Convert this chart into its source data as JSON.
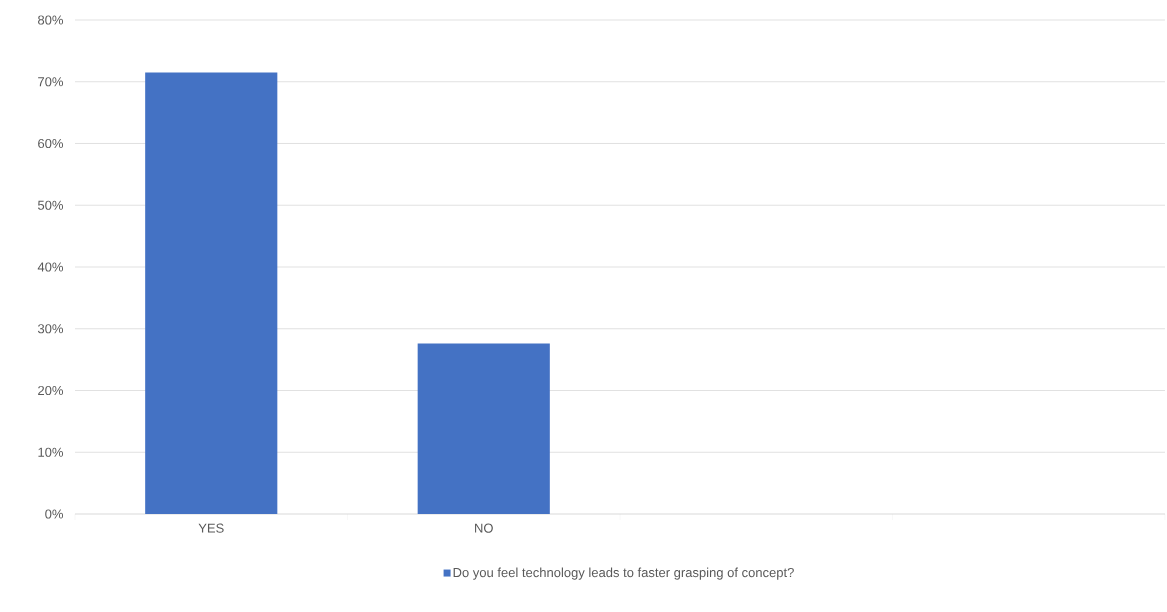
{
  "chart_data": {
    "type": "bar",
    "categories": [
      "YES",
      "NO",
      null,
      null
    ],
    "series": [
      {
        "name": "Do you feel technology leads to faster grasping of concept?",
        "color": "#4472c4",
        "values": [
          71.5,
          27.6,
          null,
          null
        ]
      }
    ],
    "ylim": [
      0,
      80
    ],
    "yticks": [
      {
        "value": 0,
        "label": "0%"
      },
      {
        "value": 10,
        "label": "10%"
      },
      {
        "value": 20,
        "label": "20%"
      },
      {
        "value": 30,
        "label": "30%"
      },
      {
        "value": 40,
        "label": "40%"
      },
      {
        "value": 50,
        "label": "50%"
      },
      {
        "value": 60,
        "label": "60%"
      },
      {
        "value": 70,
        "label": "70%"
      },
      {
        "value": 80,
        "label": "80%"
      }
    ],
    "grid": "y",
    "legend": "bottom"
  }
}
